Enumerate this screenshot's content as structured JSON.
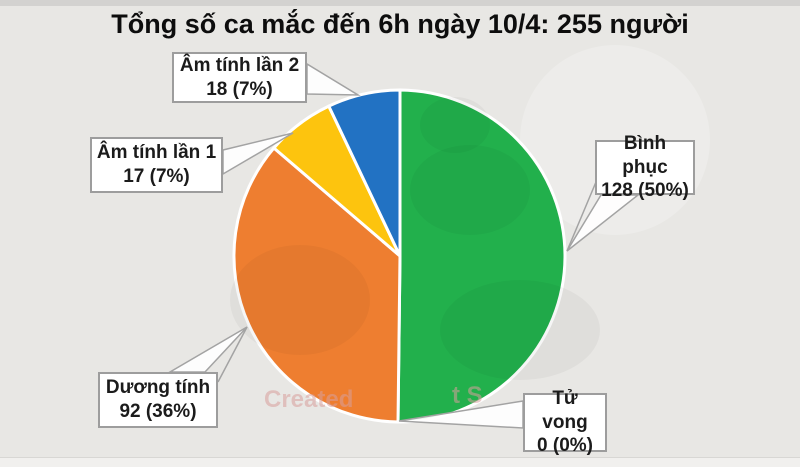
{
  "title": "Tổng số ca mắc đến 6h ngày 10/4: 255 người",
  "watermark": {
    "fragments": [
      "Created",
      "t S"
    ]
  },
  "callouts": [
    {
      "id": "am-tinh-lan-2",
      "line1": "Âm tính lần 2",
      "line2": "18 (7%)"
    },
    {
      "id": "am-tinh-lan-1",
      "line1": "Âm tính lần 1",
      "line2": "17 (7%)"
    },
    {
      "id": "binh-phuc",
      "line1": "Bình phục",
      "line2": "128 (50%)"
    },
    {
      "id": "duong-tinh",
      "line1": "Dương tính",
      "line2": "92 (36%)"
    },
    {
      "id": "tu-vong",
      "line1": "Tử vong",
      "line2": "0 (0%)"
    }
  ],
  "chart_data": {
    "type": "pie",
    "title": "Tổng số ca mắc đến 6h ngày 10/4: 255 người",
    "total": 255,
    "unit": "người",
    "start_angle_deg": 0,
    "direction": "clockwise",
    "legend_position": "callout-labels",
    "slices": [
      {
        "label": "Bình phục",
        "value": 128,
        "pct": 50,
        "color": "#22b04c"
      },
      {
        "label": "Tử vong",
        "value": 0,
        "pct": 0,
        "color": "#a6a6a6"
      },
      {
        "label": "Dương tính",
        "value": 92,
        "pct": 36,
        "color": "#ee7e30"
      },
      {
        "label": "Âm tính lần 1",
        "value": 17,
        "pct": 7,
        "color": "#fdc40e"
      },
      {
        "label": "Âm tính lần 2",
        "value": 18,
        "pct": 7,
        "color": "#2272c3"
      }
    ],
    "colors": {
      "green": "#22b04c",
      "orange": "#ee7e30",
      "yellow": "#fdc40e",
      "blue": "#2272c3"
    }
  }
}
